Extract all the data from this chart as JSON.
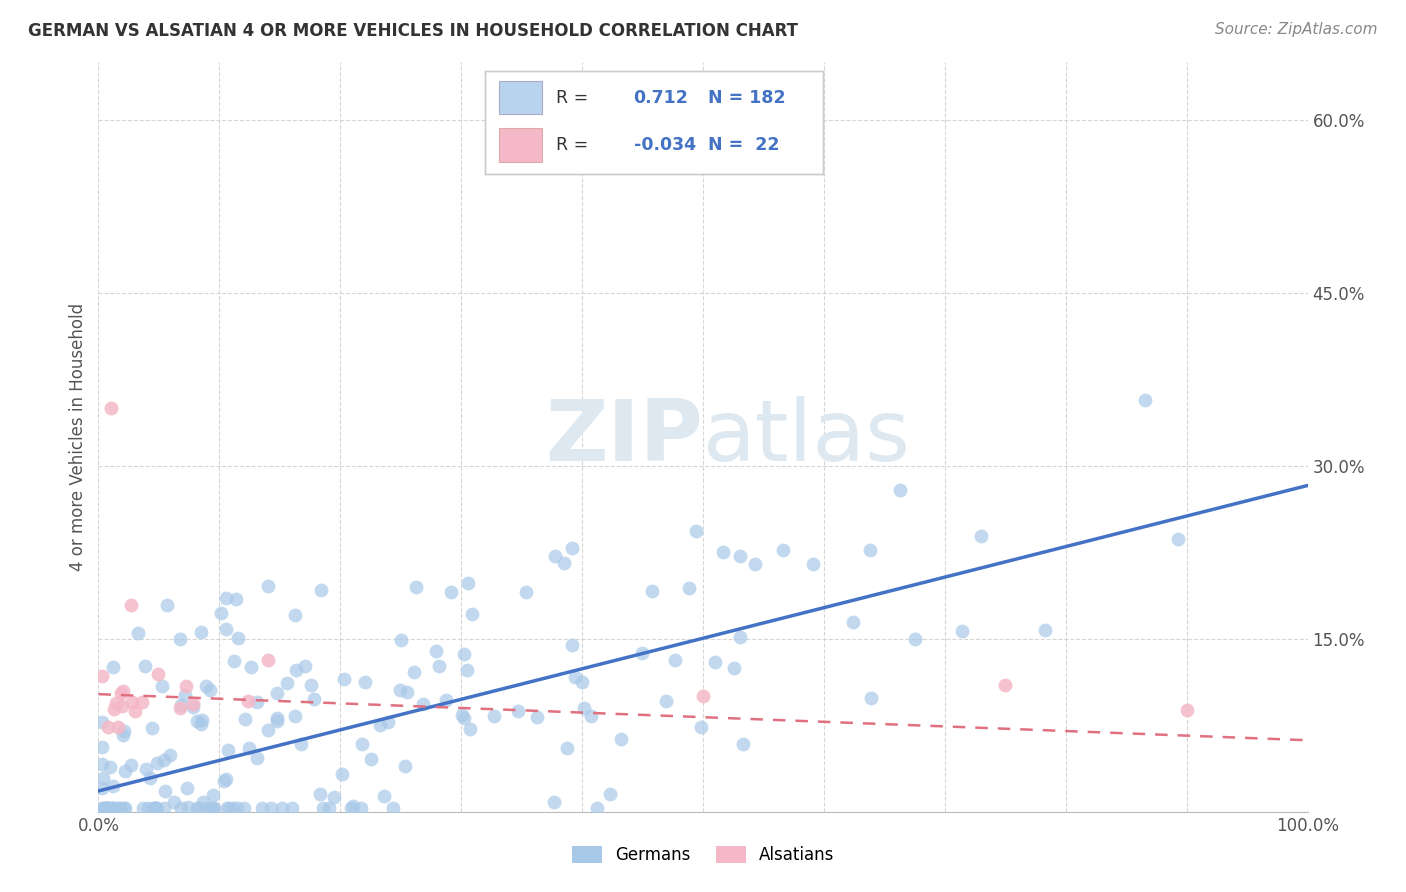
{
  "title": "GERMAN VS ALSATIAN 4 OR MORE VEHICLES IN HOUSEHOLD CORRELATION CHART",
  "source": "Source: ZipAtlas.com",
  "ylabel": "4 or more Vehicles in Household",
  "xlim": [
    0,
    100
  ],
  "ylim": [
    0,
    65
  ],
  "german_R": 0.712,
  "german_N": 182,
  "alsatian_R": -0.034,
  "alsatian_N": 22,
  "german_color": "#a8c8e8",
  "german_line_color": "#4472c4",
  "alsatian_color": "#f4b8c8",
  "alsatian_line_color": "#e07080",
  "watermark_color": "#dde8f0",
  "background_color": "#ffffff",
  "grid_color": "#cccccc",
  "legend_color_german": "#b8d4ec",
  "legend_color_alsatian": "#f4b8c8",
  "title_color": "#333333",
  "source_color": "#888888",
  "tick_color": "#555555",
  "ylabel_color": "#555555",
  "legend_text_color": "#4472c4",
  "german_slope": 0.265,
  "german_intercept": 1.8,
  "alsatian_slope": -0.04,
  "alsatian_intercept": 10.2
}
